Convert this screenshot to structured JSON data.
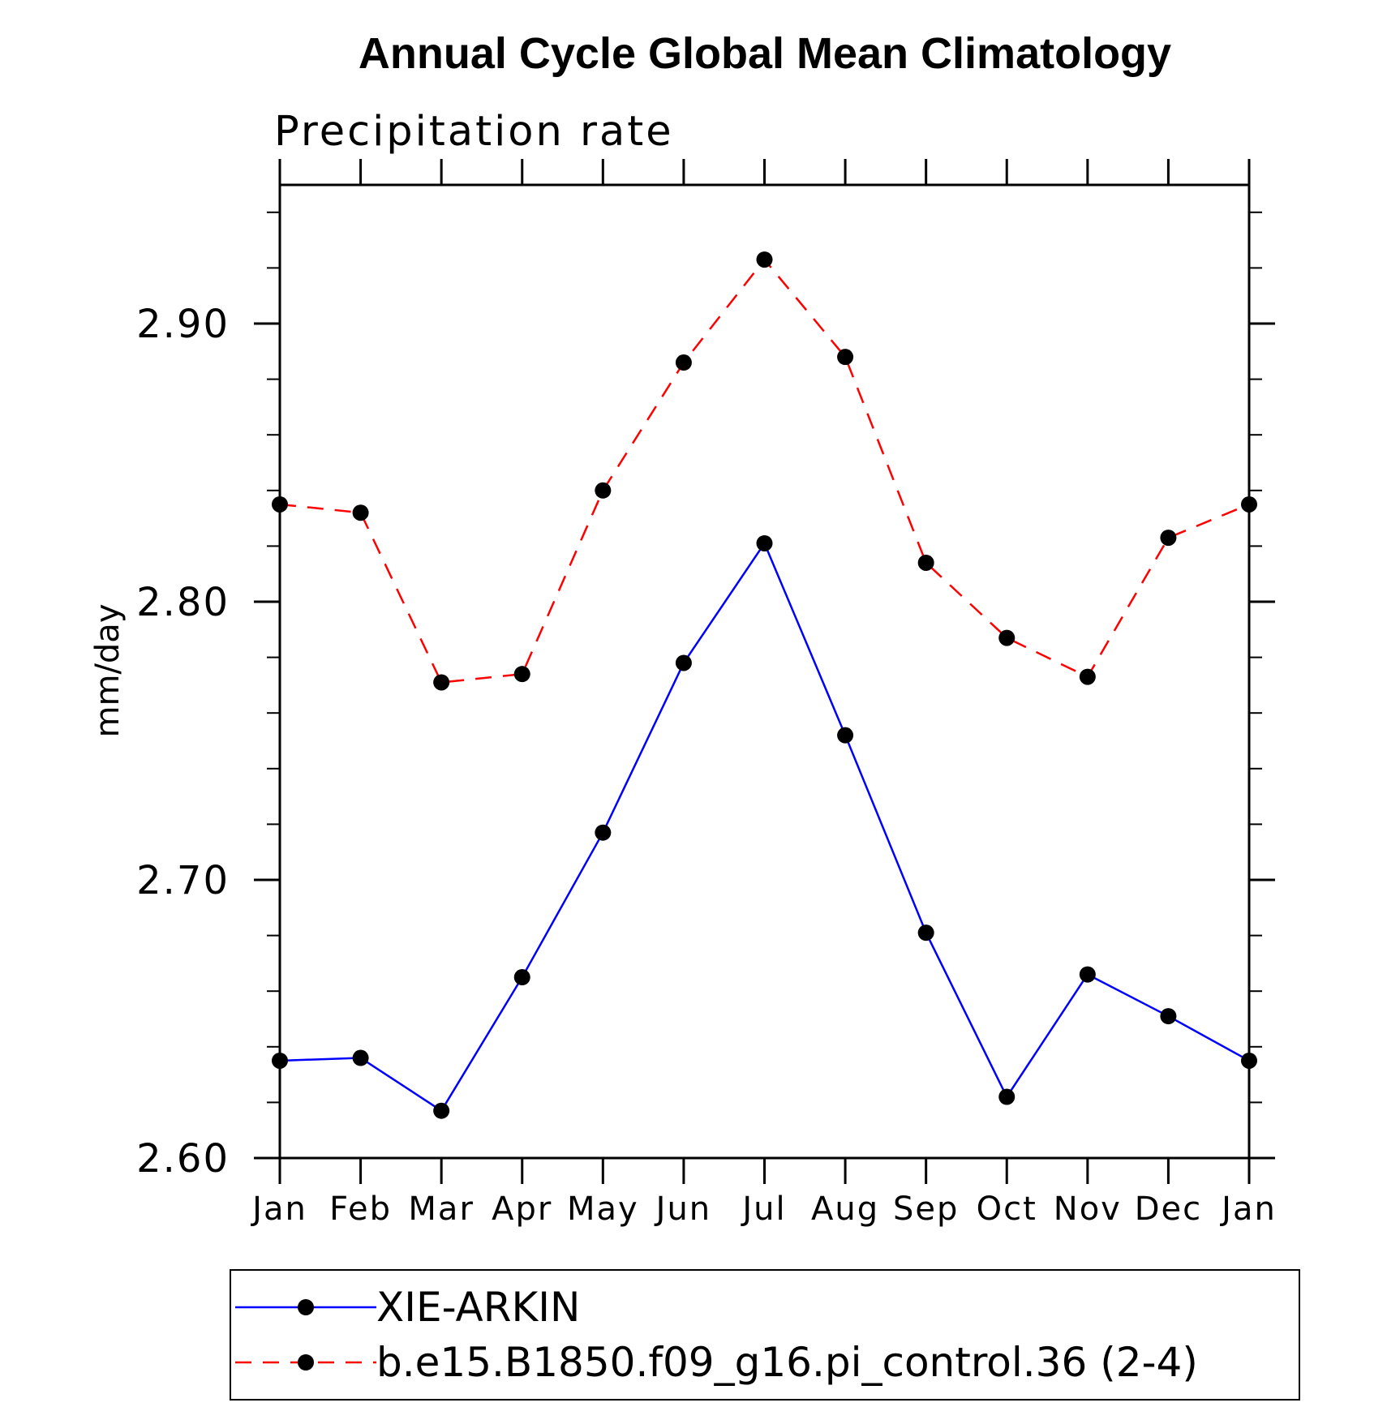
{
  "chart_data": {
    "type": "line",
    "title": "Annual Cycle Global Mean Climatology",
    "subtitle": "Precipitation rate",
    "xlabel": "",
    "ylabel": "mm/day",
    "categories": [
      "Jan",
      "Feb",
      "Mar",
      "Apr",
      "May",
      "Jun",
      "Jul",
      "Aug",
      "Sep",
      "Oct",
      "Nov",
      "Dec",
      "Jan"
    ],
    "ylim": [
      2.6,
      2.95
    ],
    "yticks": [
      2.6,
      2.7,
      2.8,
      2.9
    ],
    "ytick_labels": [
      "2.60",
      "2.70",
      "2.80",
      "2.90"
    ],
    "grid": false,
    "legend_position": "bottom",
    "series": [
      {
        "name": "XIE-ARKIN",
        "color": "#0000ff",
        "line_style": "solid",
        "marker": "filled-circle",
        "marker_color": "#000000",
        "values": [
          2.635,
          2.636,
          2.617,
          2.665,
          2.717,
          2.778,
          2.821,
          2.752,
          2.681,
          2.622,
          2.666,
          2.651,
          2.635
        ]
      },
      {
        "name": "b.e15.B1850.f09_g16.pi_control.36 (2-4)",
        "color": "#ff0000",
        "line_style": "dashed",
        "marker": "filled-circle",
        "marker_color": "#000000",
        "values": [
          2.835,
          2.832,
          2.771,
          2.774,
          2.84,
          2.886,
          2.923,
          2.888,
          2.814,
          2.787,
          2.773,
          2.823,
          2.835
        ]
      }
    ]
  }
}
